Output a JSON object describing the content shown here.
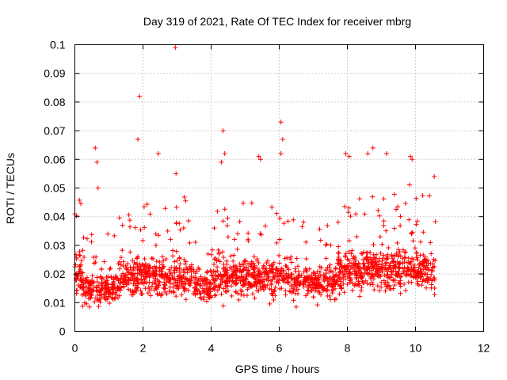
{
  "chart_data": {
    "type": "scatter",
    "title": "Day 319 of 2021, Rate Of TEC Index for receiver mbrg",
    "xlabel": "GPS time / hours",
    "ylabel": "ROTI / TECUs",
    "xlim": [
      0,
      12
    ],
    "ylim": [
      0,
      0.1
    ],
    "xticks": [
      "0",
      "2",
      "4",
      "6",
      "8",
      "10",
      "12"
    ],
    "yticks": [
      "0",
      "0.01",
      "0.02",
      "0.03",
      "0.04",
      "0.05",
      "0.06",
      "0.07",
      "0.08",
      "0.09",
      "0.1"
    ],
    "grid": true,
    "marker": "+",
    "color": "#ff0000",
    "series": [
      {
        "name": "ROTI",
        "x_range": [
          0,
          10.6
        ],
        "typical_band": [
          0.008,
          0.03
        ],
        "notable_points": [
          {
            "x": 0.0,
            "y": 0.041
          },
          {
            "x": 0.6,
            "y": 0.064
          },
          {
            "x": 0.65,
            "y": 0.059
          },
          {
            "x": 0.68,
            "y": 0.05
          },
          {
            "x": 1.85,
            "y": 0.067
          },
          {
            "x": 1.9,
            "y": 0.082
          },
          {
            "x": 2.45,
            "y": 0.062
          },
          {
            "x": 2.95,
            "y": 0.099
          },
          {
            "x": 2.97,
            "y": 0.055
          },
          {
            "x": 4.35,
            "y": 0.07
          },
          {
            "x": 4.4,
            "y": 0.062
          },
          {
            "x": 4.3,
            "y": 0.059
          },
          {
            "x": 5.4,
            "y": 0.061
          },
          {
            "x": 5.45,
            "y": 0.06
          },
          {
            "x": 6.05,
            "y": 0.073
          },
          {
            "x": 6.1,
            "y": 0.067
          },
          {
            "x": 6.05,
            "y": 0.062
          },
          {
            "x": 7.95,
            "y": 0.062
          },
          {
            "x": 8.05,
            "y": 0.061
          },
          {
            "x": 8.75,
            "y": 0.064
          },
          {
            "x": 8.6,
            "y": 0.062
          },
          {
            "x": 9.15,
            "y": 0.062
          },
          {
            "x": 9.85,
            "y": 0.061
          },
          {
            "x": 9.9,
            "y": 0.06
          },
          {
            "x": 10.55,
            "y": 0.054
          }
        ]
      }
    ]
  }
}
